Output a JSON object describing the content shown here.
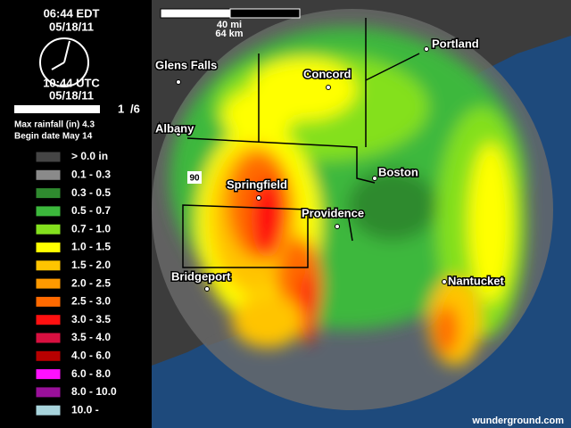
{
  "header": {
    "time_local": "06:44 EDT",
    "date_local": "05/18/11",
    "time_utc": "10:44 UTC",
    "date_utc": "05/18/11",
    "frame": "1",
    "frame_total": "/6",
    "max_rainfall": "Max rainfall (in) 4.3",
    "begin_date": "Begin date May 14"
  },
  "scale": {
    "miles": "40 mi",
    "km": "64 km"
  },
  "legend": [
    {
      "label": "> 0.0 in",
      "color": "#454545"
    },
    {
      "label": "0.1 - 0.3",
      "color": "#8a8a8a"
    },
    {
      "label": "0.3 - 0.5",
      "color": "#2f8a2f"
    },
    {
      "label": "0.5 - 0.7",
      "color": "#3cb83c"
    },
    {
      "label": "0.7 - 1.0",
      "color": "#84e01e"
    },
    {
      "label": "1.0 - 1.5",
      "color": "#ffff00"
    },
    {
      "label": "1.5 - 2.0",
      "color": "#ffc400"
    },
    {
      "label": "2.0 - 2.5",
      "color": "#ff9a00"
    },
    {
      "label": "2.5 - 3.0",
      "color": "#ff6a00"
    },
    {
      "label": "3.0 - 3.5",
      "color": "#ff1010"
    },
    {
      "label": "3.5 - 4.0",
      "color": "#d81040"
    },
    {
      "label": "4.0 - 6.0",
      "color": "#b80000"
    },
    {
      "label": "6.0 - 8.0",
      "color": "#ff10ff"
    },
    {
      "label": "8.0 - 10.0",
      "color": "#9a109a"
    },
    {
      "label": "10.0 -",
      "color": "#a8d4dc"
    }
  ],
  "cities": [
    {
      "name": "Glens Falls"
    },
    {
      "name": "Concord"
    },
    {
      "name": "Portland"
    },
    {
      "name": "Albany"
    },
    {
      "name": "Springfield"
    },
    {
      "name": "Boston"
    },
    {
      "name": "Providence"
    },
    {
      "name": "Bridgeport"
    },
    {
      "name": "Nantucket"
    }
  ],
  "highway": "90",
  "footer": "wunderground.com"
}
